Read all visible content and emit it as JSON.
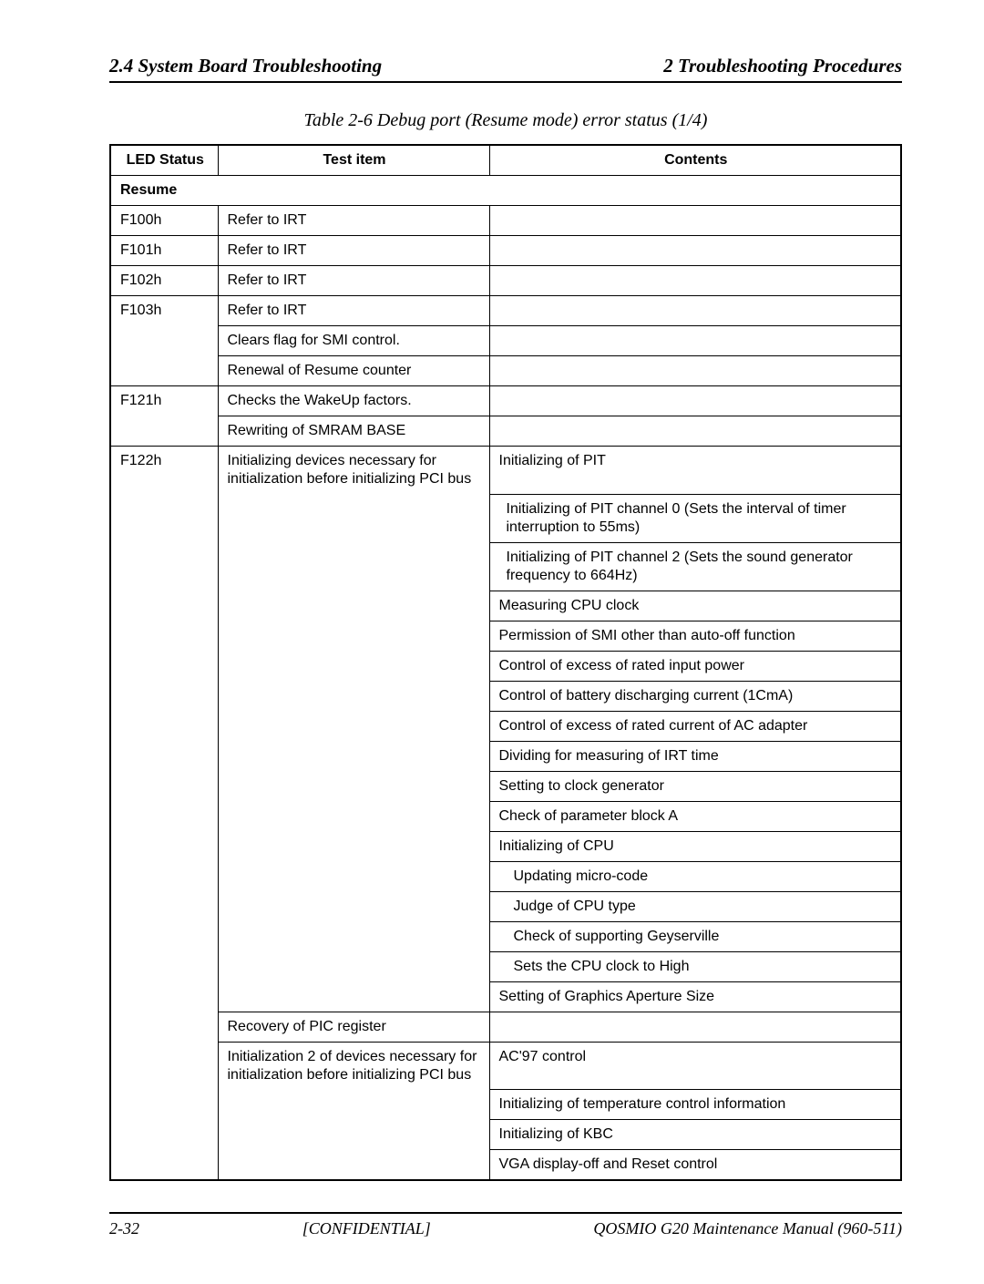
{
  "header": {
    "left": "2.4  System Board Troubleshooting",
    "right": "2  Troubleshooting Procedures"
  },
  "caption": "Table 2-6   Debug port (Resume mode) error status (1/4)",
  "columns": {
    "led": "LED Status",
    "test": "Test item",
    "contents": "Contents"
  },
  "section": "Resume",
  "rows": {
    "f100": {
      "led": "F100h",
      "test": "Refer to IRT"
    },
    "f101": {
      "led": "F101h",
      "test": "Refer to IRT"
    },
    "f102": {
      "led": "F102h",
      "test": "Refer to IRT"
    },
    "f103": {
      "led": "F103h",
      "test1": "Refer to IRT",
      "test2": "Clears flag for SMI control.",
      "test3": "Renewal of Resume counter"
    },
    "f121": {
      "led": "F121h",
      "test1": "Checks the WakeUp factors.",
      "test2": "Rewriting of SMRAM BASE"
    },
    "f122": {
      "led": "F122h",
      "test1": "Initializing devices necessary for initialization before initializing PCI bus",
      "contents": {
        "c1": "Initializing of PIT",
        "c2": "Initializing of PIT channel 0 (Sets the interval of timer interruption to 55ms)",
        "c3": "Initializing of PIT channel 2 (Sets the sound generator frequency  to 664Hz)",
        "c4": "Measuring CPU clock",
        "c5": "Permission of SMI other than auto-off function",
        "c6": "Control of excess of rated input power",
        "c7": "Control of battery discharging current (1CmA)",
        "c8": "Control of excess of rated current of AC adapter",
        "c9": "Dividing for measuring of IRT time",
        "c10": "Setting to clock generator",
        "c11": "Check of parameter block A",
        "c12": "Initializing of CPU",
        "c13": "Updating micro-code",
        "c14": "Judge of CPU type",
        "c15": "Check of supporting Geyserville",
        "c16": "Sets the CPU clock to High",
        "c17": "Setting of Graphics Aperture Size"
      },
      "test2": "Recovery of PIC register",
      "test3": "Initialization 2 of devices necessary for initialization before initializing PCI bus",
      "contents2": {
        "d1": "AC'97 control",
        "d2": "Initializing of temperature control information",
        "d3": "Initializing of KBC",
        "d4": "VGA display-off and Reset control"
      }
    }
  },
  "footer": {
    "left": "2-32",
    "center": "[CONFIDENTIAL]",
    "right": "QOSMIO G20  Maintenance Manual (960-511)"
  },
  "colors": {
    "text": "#000000",
    "background": "#ffffff",
    "border": "#000000"
  }
}
